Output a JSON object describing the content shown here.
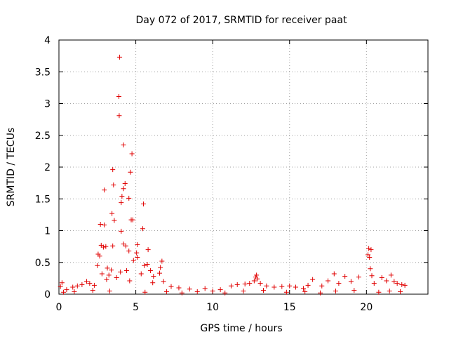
{
  "chart_data": {
    "type": "scatter",
    "title": "Day 072 of 2017, SRMTID for receiver paat",
    "xlabel": "GPS time / hours",
    "ylabel": "SRMTID / TECUs",
    "xlim": [
      0,
      24
    ],
    "ylim": [
      0,
      4
    ],
    "xticks": [
      0,
      5,
      10,
      15,
      20
    ],
    "yticks": [
      0,
      0.5,
      1,
      1.5,
      2,
      2.5,
      3,
      3.5,
      4
    ],
    "ytick_labels": [
      "0",
      "0.5",
      "1",
      "1.5",
      "2",
      "2.5",
      "3",
      "3.5",
      "4"
    ],
    "grid": true,
    "marker": "+",
    "color": "#e00000",
    "series": [
      {
        "name": "SRMTID",
        "points": [
          [
            3.95,
            3.73
          ],
          [
            3.9,
            3.11
          ],
          [
            3.92,
            2.81
          ],
          [
            4.2,
            2.35
          ],
          [
            4.75,
            2.21
          ],
          [
            3.5,
            1.96
          ],
          [
            4.65,
            1.92
          ],
          [
            4.3,
            1.74
          ],
          [
            3.55,
            1.72
          ],
          [
            4.2,
            1.66
          ],
          [
            2.95,
            1.64
          ],
          [
            4.1,
            1.54
          ],
          [
            4.55,
            1.51
          ],
          [
            4.05,
            1.44
          ],
          [
            5.5,
            1.42
          ],
          [
            3.45,
            1.27
          ],
          [
            3.6,
            1.16
          ],
          [
            4.7,
            1.17
          ],
          [
            4.8,
            1.17
          ],
          [
            2.7,
            1.1
          ],
          [
            2.95,
            1.09
          ],
          [
            5.45,
            1.03
          ],
          [
            4.05,
            0.99
          ],
          [
            2.75,
            0.77
          ],
          [
            2.9,
            0.74
          ],
          [
            3.05,
            0.75
          ],
          [
            3.5,
            0.76
          ],
          [
            4.2,
            0.79
          ],
          [
            4.35,
            0.76
          ],
          [
            4.55,
            0.68
          ],
          [
            5.1,
            0.78
          ],
          [
            5.05,
            0.65
          ],
          [
            5.1,
            0.58
          ],
          [
            2.55,
            0.63
          ],
          [
            2.65,
            0.6
          ],
          [
            5.8,
            0.7
          ],
          [
            6.7,
            0.52
          ],
          [
            5.75,
            0.47
          ],
          [
            5.55,
            0.45
          ],
          [
            4.85,
            0.53
          ],
          [
            2.5,
            0.45
          ],
          [
            3.15,
            0.41
          ],
          [
            3.4,
            0.38
          ],
          [
            4.0,
            0.35
          ],
          [
            4.4,
            0.37
          ],
          [
            5.95,
            0.37
          ],
          [
            6.6,
            0.42
          ],
          [
            2.8,
            0.32
          ],
          [
            3.25,
            0.3
          ],
          [
            3.75,
            0.26
          ],
          [
            5.35,
            0.32
          ],
          [
            6.15,
            0.28
          ],
          [
            6.55,
            0.33
          ],
          [
            3.1,
            0.23
          ],
          [
            4.6,
            0.21
          ],
          [
            6.1,
            0.18
          ],
          [
            6.8,
            0.2
          ],
          [
            1.8,
            0.2
          ],
          [
            2.0,
            0.17
          ],
          [
            0.2,
            0.18
          ],
          [
            0.1,
            0.12
          ],
          [
            0.5,
            0.07
          ],
          [
            0.9,
            0.11
          ],
          [
            1.2,
            0.13
          ],
          [
            1.5,
            0.15
          ],
          [
            2.3,
            0.14
          ],
          [
            7.3,
            0.12
          ],
          [
            7.8,
            0.1
          ],
          [
            8.5,
            0.08
          ],
          [
            9.5,
            0.09
          ],
          [
            10.0,
            0.05
          ],
          [
            10.5,
            0.07
          ],
          [
            11.2,
            0.13
          ],
          [
            11.6,
            0.15
          ],
          [
            12.1,
            0.16
          ],
          [
            12.4,
            0.17
          ],
          [
            12.7,
            0.21
          ],
          [
            12.8,
            0.27
          ],
          [
            12.85,
            0.3
          ],
          [
            12.9,
            0.24
          ],
          [
            13.1,
            0.17
          ],
          [
            13.5,
            0.13
          ],
          [
            14.0,
            0.11
          ],
          [
            14.5,
            0.12
          ],
          [
            15.0,
            0.13
          ],
          [
            15.4,
            0.11
          ],
          [
            15.9,
            0.09
          ],
          [
            16.2,
            0.14
          ],
          [
            16.5,
            0.23
          ],
          [
            17.1,
            0.13
          ],
          [
            17.5,
            0.21
          ],
          [
            17.9,
            0.32
          ],
          [
            18.2,
            0.17
          ],
          [
            18.6,
            0.28
          ],
          [
            19.0,
            0.2
          ],
          [
            19.5,
            0.27
          ],
          [
            20.1,
            0.62
          ],
          [
            20.15,
            0.72
          ],
          [
            20.2,
            0.58
          ],
          [
            20.3,
            0.7
          ],
          [
            20.25,
            0.4
          ],
          [
            20.35,
            0.29
          ],
          [
            20.5,
            0.17
          ],
          [
            21.0,
            0.26
          ],
          [
            21.3,
            0.21
          ],
          [
            21.6,
            0.3
          ],
          [
            21.8,
            0.2
          ],
          [
            22.0,
            0.17
          ],
          [
            22.3,
            0.15
          ],
          [
            22.5,
            0.14
          ],
          [
            0.3,
            0.03
          ],
          [
            1.0,
            0.04
          ],
          [
            2.2,
            0.06
          ],
          [
            3.3,
            0.05
          ],
          [
            5.6,
            0.03
          ],
          [
            7.0,
            0.04
          ],
          [
            8.0,
            0.02
          ],
          [
            9.0,
            0.04
          ],
          [
            10.8,
            0.02
          ],
          [
            12.0,
            0.05
          ],
          [
            13.3,
            0.06
          ],
          [
            14.8,
            0.03
          ],
          [
            16.0,
            0.04
          ],
          [
            17.0,
            0.02
          ],
          [
            18.0,
            0.05
          ],
          [
            19.2,
            0.06
          ],
          [
            20.8,
            0.03
          ],
          [
            21.5,
            0.05
          ],
          [
            22.2,
            0.04
          ]
        ]
      }
    ]
  }
}
